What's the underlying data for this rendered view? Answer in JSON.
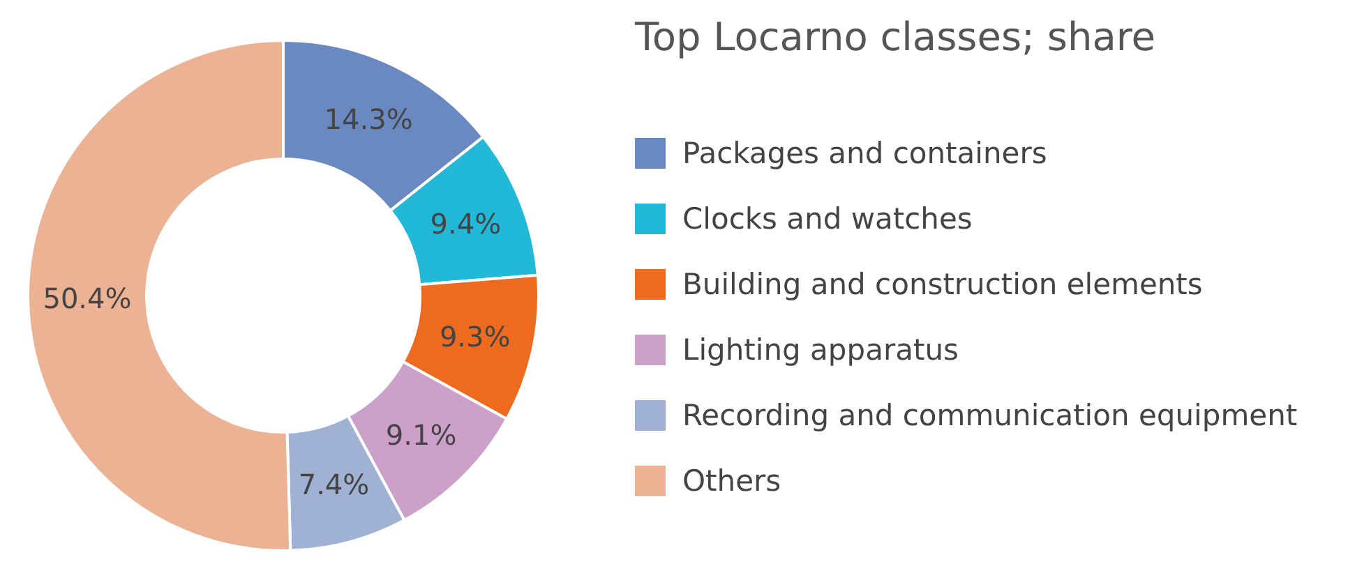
{
  "chart_data": {
    "type": "donut",
    "title": "Top Locarno classes; share",
    "categories": [
      "Packages and containers",
      "Clocks and watches",
      "Building and construction elements",
      "Lighting apparatus",
      "Recording and communication equipment",
      "Others"
    ],
    "values": [
      14.3,
      9.4,
      9.3,
      9.1,
      7.4,
      50.4
    ],
    "colors": [
      "#6b89c1",
      "#22b8d8",
      "#ee6a1f",
      "#cda0c9",
      "#9fb2d3",
      "#ebb394"
    ],
    "value_labels": [
      "14.3%",
      "9.4%",
      "9.3%",
      "9.1%",
      "7.4%",
      "50.4%"
    ],
    "legend": "right"
  }
}
